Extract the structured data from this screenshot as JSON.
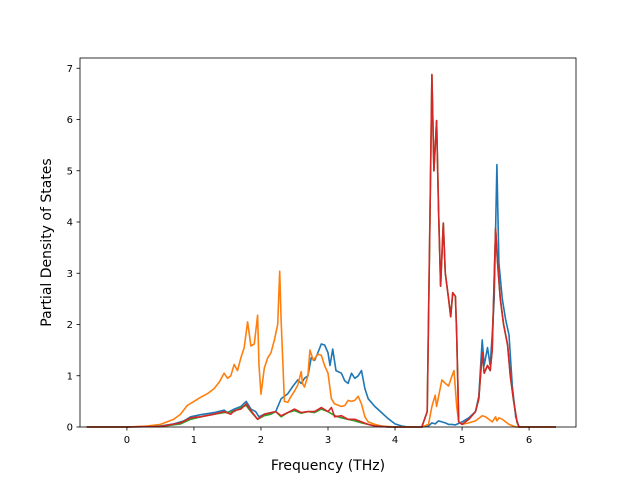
{
  "chart_data": {
    "type": "line",
    "title": "",
    "xlabel": "Frequency (THz)",
    "ylabel": "Partial Density of States",
    "xlim": [
      -0.7,
      6.7
    ],
    "ylim": [
      0,
      7.2
    ],
    "xticks": [
      0,
      1,
      2,
      3,
      4,
      5,
      6
    ],
    "yticks": [
      0,
      1,
      2,
      3,
      4,
      5,
      6,
      7
    ],
    "grid": false,
    "legend": "none",
    "series": [
      {
        "color": "#1f77b4",
        "points": [
          [
            -0.6,
            0
          ],
          [
            0,
            0
          ],
          [
            0.5,
            0.02
          ],
          [
            0.7,
            0.06
          ],
          [
            0.85,
            0.12
          ],
          [
            0.95,
            0.2
          ],
          [
            1.1,
            0.24
          ],
          [
            1.3,
            0.28
          ],
          [
            1.45,
            0.33
          ],
          [
            1.5,
            0.28
          ],
          [
            1.6,
            0.35
          ],
          [
            1.7,
            0.4
          ],
          [
            1.78,
            0.5
          ],
          [
            1.85,
            0.35
          ],
          [
            1.92,
            0.3
          ],
          [
            1.97,
            0.2
          ],
          [
            2.05,
            0.25
          ],
          [
            2.15,
            0.28
          ],
          [
            2.22,
            0.3
          ],
          [
            2.3,
            0.55
          ],
          [
            2.4,
            0.65
          ],
          [
            2.48,
            0.8
          ],
          [
            2.55,
            0.92
          ],
          [
            2.6,
            0.85
          ],
          [
            2.65,
            0.95
          ],
          [
            2.7,
            1.0
          ],
          [
            2.75,
            1.35
          ],
          [
            2.8,
            1.3
          ],
          [
            2.85,
            1.45
          ],
          [
            2.9,
            1.62
          ],
          [
            2.95,
            1.6
          ],
          [
            3.0,
            1.45
          ],
          [
            3.03,
            1.2
          ],
          [
            3.07,
            1.52
          ],
          [
            3.12,
            1.1
          ],
          [
            3.2,
            1.05
          ],
          [
            3.25,
            0.9
          ],
          [
            3.3,
            0.85
          ],
          [
            3.35,
            1.05
          ],
          [
            3.4,
            0.95
          ],
          [
            3.45,
            1.0
          ],
          [
            3.5,
            1.1
          ],
          [
            3.55,
            0.75
          ],
          [
            3.6,
            0.55
          ],
          [
            3.7,
            0.4
          ],
          [
            3.8,
            0.28
          ],
          [
            3.9,
            0.16
          ],
          [
            4.0,
            0.06
          ],
          [
            4.1,
            0.02
          ],
          [
            4.2,
            0
          ],
          [
            4.4,
            0
          ],
          [
            4.5,
            0.02
          ],
          [
            4.55,
            0.08
          ],
          [
            4.6,
            0.06
          ],
          [
            4.65,
            0.12
          ],
          [
            4.7,
            0.1
          ],
          [
            4.75,
            0.08
          ],
          [
            4.8,
            0.05
          ],
          [
            4.85,
            0.05
          ],
          [
            4.9,
            0.04
          ],
          [
            5.0,
            0.1
          ],
          [
            5.1,
            0.18
          ],
          [
            5.2,
            0.3
          ],
          [
            5.25,
            0.6
          ],
          [
            5.3,
            1.7
          ],
          [
            5.33,
            1.2
          ],
          [
            5.38,
            1.55
          ],
          [
            5.42,
            1.2
          ],
          [
            5.45,
            1.8
          ],
          [
            5.48,
            2.5
          ],
          [
            5.52,
            5.12
          ],
          [
            5.55,
            3.2
          ],
          [
            5.6,
            2.5
          ],
          [
            5.65,
            2.1
          ],
          [
            5.7,
            1.8
          ],
          [
            5.75,
            0.8
          ],
          [
            5.8,
            0.2
          ],
          [
            5.85,
            0
          ],
          [
            6.4,
            0
          ]
        ]
      },
      {
        "color": "#ff7f0e",
        "points": [
          [
            -0.6,
            0
          ],
          [
            0,
            0
          ],
          [
            0.3,
            0.02
          ],
          [
            0.5,
            0.05
          ],
          [
            0.7,
            0.15
          ],
          [
            0.8,
            0.25
          ],
          [
            0.9,
            0.42
          ],
          [
            1.0,
            0.5
          ],
          [
            1.1,
            0.58
          ],
          [
            1.2,
            0.65
          ],
          [
            1.3,
            0.75
          ],
          [
            1.38,
            0.88
          ],
          [
            1.45,
            1.05
          ],
          [
            1.5,
            0.95
          ],
          [
            1.55,
            1.0
          ],
          [
            1.6,
            1.22
          ],
          [
            1.65,
            1.1
          ],
          [
            1.7,
            1.35
          ],
          [
            1.75,
            1.55
          ],
          [
            1.8,
            2.05
          ],
          [
            1.85,
            1.58
          ],
          [
            1.9,
            1.62
          ],
          [
            1.95,
            2.18
          ],
          [
            1.97,
            1.2
          ],
          [
            2.0,
            0.64
          ],
          [
            2.05,
            1.15
          ],
          [
            2.1,
            1.35
          ],
          [
            2.15,
            1.45
          ],
          [
            2.2,
            1.7
          ],
          [
            2.25,
            2.0
          ],
          [
            2.28,
            3.04
          ],
          [
            2.3,
            2.1
          ],
          [
            2.35,
            0.5
          ],
          [
            2.4,
            0.48
          ],
          [
            2.45,
            0.6
          ],
          [
            2.5,
            0.7
          ],
          [
            2.55,
            0.82
          ],
          [
            2.6,
            1.08
          ],
          [
            2.62,
            0.85
          ],
          [
            2.65,
            0.78
          ],
          [
            2.7,
            1.0
          ],
          [
            2.73,
            1.5
          ],
          [
            2.78,
            1.3
          ],
          [
            2.85,
            1.42
          ],
          [
            2.9,
            1.4
          ],
          [
            2.95,
            1.2
          ],
          [
            3.0,
            1.05
          ],
          [
            3.05,
            0.55
          ],
          [
            3.1,
            0.45
          ],
          [
            3.2,
            0.4
          ],
          [
            3.25,
            0.42
          ],
          [
            3.3,
            0.52
          ],
          [
            3.35,
            0.5
          ],
          [
            3.4,
            0.52
          ],
          [
            3.45,
            0.6
          ],
          [
            3.5,
            0.45
          ],
          [
            3.55,
            0.2
          ],
          [
            3.6,
            0.1
          ],
          [
            3.7,
            0.05
          ],
          [
            3.8,
            0.02
          ],
          [
            4.0,
            0
          ],
          [
            4.4,
            0
          ],
          [
            4.5,
            0.05
          ],
          [
            4.55,
            0.4
          ],
          [
            4.6,
            0.62
          ],
          [
            4.62,
            0.4
          ],
          [
            4.65,
            0.6
          ],
          [
            4.7,
            0.92
          ],
          [
            4.75,
            0.85
          ],
          [
            4.8,
            0.8
          ],
          [
            4.85,
            1.0
          ],
          [
            4.88,
            1.1
          ],
          [
            4.92,
            0.4
          ],
          [
            4.95,
            0.1
          ],
          [
            5.0,
            0.05
          ],
          [
            5.1,
            0.08
          ],
          [
            5.2,
            0.12
          ],
          [
            5.3,
            0.22
          ],
          [
            5.35,
            0.2
          ],
          [
            5.4,
            0.15
          ],
          [
            5.45,
            0.1
          ],
          [
            5.5,
            0.2
          ],
          [
            5.52,
            0.12
          ],
          [
            5.55,
            0.18
          ],
          [
            5.6,
            0.15
          ],
          [
            5.65,
            0.1
          ],
          [
            5.7,
            0.05
          ],
          [
            5.8,
            0
          ],
          [
            6.4,
            0
          ]
        ]
      },
      {
        "color": "#2ca02c",
        "points": [
          [
            -0.6,
            0
          ],
          [
            0,
            0
          ],
          [
            0.5,
            0.01
          ],
          [
            0.8,
            0.06
          ],
          [
            0.95,
            0.15
          ],
          [
            1.1,
            0.2
          ],
          [
            1.3,
            0.25
          ],
          [
            1.45,
            0.28
          ],
          [
            1.6,
            0.3
          ],
          [
            1.7,
            0.38
          ],
          [
            1.78,
            0.42
          ],
          [
            1.85,
            0.3
          ],
          [
            1.95,
            0.15
          ],
          [
            2.05,
            0.22
          ],
          [
            2.15,
            0.25
          ],
          [
            2.22,
            0.3
          ],
          [
            2.3,
            0.2
          ],
          [
            2.4,
            0.28
          ],
          [
            2.5,
            0.32
          ],
          [
            2.6,
            0.27
          ],
          [
            2.7,
            0.3
          ],
          [
            2.8,
            0.28
          ],
          [
            2.9,
            0.35
          ],
          [
            3.0,
            0.3
          ],
          [
            3.1,
            0.22
          ],
          [
            3.2,
            0.18
          ],
          [
            3.3,
            0.15
          ],
          [
            3.4,
            0.12
          ],
          [
            3.5,
            0.08
          ],
          [
            3.6,
            0.05
          ],
          [
            3.7,
            0.02
          ],
          [
            3.9,
            0
          ],
          [
            4.4,
            0
          ],
          [
            4.48,
            0.3
          ],
          [
            4.52,
            4.0
          ],
          [
            4.55,
            6.86
          ],
          [
            4.58,
            5.0
          ],
          [
            4.62,
            5.98
          ],
          [
            4.65,
            4.2
          ],
          [
            4.68,
            2.75
          ],
          [
            4.72,
            3.98
          ],
          [
            4.75,
            3.0
          ],
          [
            4.8,
            2.5
          ],
          [
            4.83,
            2.15
          ],
          [
            4.86,
            2.62
          ],
          [
            4.9,
            2.55
          ],
          [
            4.92,
            1.8
          ],
          [
            4.95,
            0.1
          ],
          [
            5.0,
            0.05
          ],
          [
            5.1,
            0.15
          ],
          [
            5.2,
            0.3
          ],
          [
            5.25,
            0.55
          ],
          [
            5.3,
            1.45
          ],
          [
            5.33,
            1.05
          ],
          [
            5.38,
            1.2
          ],
          [
            5.42,
            1.1
          ],
          [
            5.45,
            1.5
          ],
          [
            5.5,
            3.87
          ],
          [
            5.53,
            3.2
          ],
          [
            5.57,
            2.5
          ],
          [
            5.62,
            2.0
          ],
          [
            5.68,
            1.6
          ],
          [
            5.72,
            1.0
          ],
          [
            5.77,
            0.5
          ],
          [
            5.82,
            0.1
          ],
          [
            5.85,
            0
          ],
          [
            6.4,
            0
          ]
        ]
      },
      {
        "color": "#d62728",
        "points": [
          [
            -0.6,
            0
          ],
          [
            0,
            0
          ],
          [
            0.5,
            0.01
          ],
          [
            0.8,
            0.08
          ],
          [
            0.95,
            0.18
          ],
          [
            1.1,
            0.2
          ],
          [
            1.3,
            0.25
          ],
          [
            1.45,
            0.3
          ],
          [
            1.55,
            0.25
          ],
          [
            1.6,
            0.32
          ],
          [
            1.7,
            0.35
          ],
          [
            1.78,
            0.45
          ],
          [
            1.85,
            0.32
          ],
          [
            1.95,
            0.15
          ],
          [
            2.05,
            0.25
          ],
          [
            2.15,
            0.28
          ],
          [
            2.22,
            0.3
          ],
          [
            2.3,
            0.22
          ],
          [
            2.4,
            0.28
          ],
          [
            2.5,
            0.35
          ],
          [
            2.6,
            0.28
          ],
          [
            2.7,
            0.3
          ],
          [
            2.8,
            0.3
          ],
          [
            2.9,
            0.38
          ],
          [
            3.0,
            0.3
          ],
          [
            3.05,
            0.38
          ],
          [
            3.1,
            0.2
          ],
          [
            3.2,
            0.22
          ],
          [
            3.3,
            0.15
          ],
          [
            3.4,
            0.15
          ],
          [
            3.5,
            0.1
          ],
          [
            3.6,
            0.05
          ],
          [
            3.7,
            0.02
          ],
          [
            3.9,
            0
          ],
          [
            4.4,
            0
          ],
          [
            4.48,
            0.3
          ],
          [
            4.52,
            4.0
          ],
          [
            4.55,
            6.88
          ],
          [
            4.58,
            5.0
          ],
          [
            4.62,
            5.98
          ],
          [
            4.65,
            4.2
          ],
          [
            4.68,
            2.75
          ],
          [
            4.72,
            3.98
          ],
          [
            4.75,
            3.0
          ],
          [
            4.8,
            2.5
          ],
          [
            4.83,
            2.15
          ],
          [
            4.86,
            2.62
          ],
          [
            4.9,
            2.55
          ],
          [
            4.92,
            1.8
          ],
          [
            4.95,
            0.1
          ],
          [
            5.0,
            0.05
          ],
          [
            5.1,
            0.15
          ],
          [
            5.2,
            0.3
          ],
          [
            5.25,
            0.55
          ],
          [
            5.3,
            1.45
          ],
          [
            5.33,
            1.05
          ],
          [
            5.38,
            1.2
          ],
          [
            5.42,
            1.1
          ],
          [
            5.45,
            1.5
          ],
          [
            5.5,
            3.87
          ],
          [
            5.53,
            3.2
          ],
          [
            5.57,
            2.5
          ],
          [
            5.62,
            2.0
          ],
          [
            5.68,
            1.6
          ],
          [
            5.72,
            1.0
          ],
          [
            5.77,
            0.5
          ],
          [
            5.82,
            0.1
          ],
          [
            5.85,
            0
          ],
          [
            6.4,
            0
          ]
        ]
      }
    ]
  }
}
